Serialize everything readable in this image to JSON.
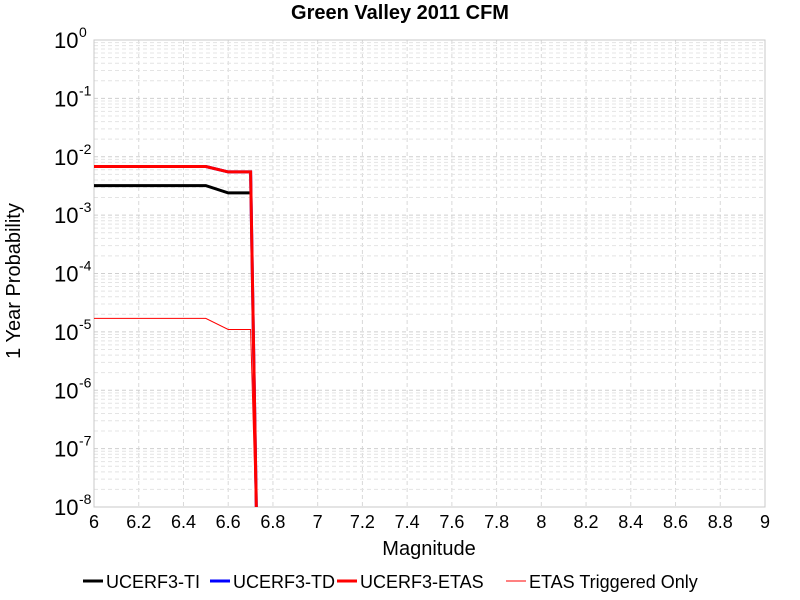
{
  "chart_data": {
    "type": "line",
    "title": "Green Valley 2011 CFM",
    "xlabel": "Magnitude",
    "ylabel": "1 Year Probability",
    "xlim": [
      6,
      9
    ],
    "ylim": [
      1e-08,
      1
    ],
    "yscale": "log",
    "grid": true,
    "legend_position": "bottom",
    "x_ticks": [
      "6",
      "6.2",
      "6.4",
      "6.6",
      "6.8",
      "7",
      "7.2",
      "7.4",
      "7.6",
      "7.8",
      "8",
      "8.2",
      "8.4",
      "8.6",
      "8.8",
      "9"
    ],
    "y_tick_exponents": [
      "0",
      "-1",
      "-2",
      "-3",
      "-4",
      "-5",
      "-6",
      "-7",
      "-8"
    ],
    "series": [
      {
        "name": "UCERF3-TI",
        "color": "#000000",
        "x": [
          6.0,
          6.5,
          6.6,
          6.7
        ],
        "y": [
          0.0032,
          0.0032,
          0.0024,
          0.0024
        ]
      },
      {
        "name": "UCERF3-TD",
        "color": "#0000ff",
        "x": [
          6.0,
          6.5,
          6.6,
          6.7,
          6.73
        ],
        "y": [
          0.0068,
          0.0068,
          0.0055,
          0.0055,
          1e-09
        ]
      },
      {
        "name": "UCERF3-ETAS",
        "color": "#ff0000",
        "x": [
          6.0,
          6.5,
          6.6,
          6.7,
          6.73
        ],
        "y": [
          0.0068,
          0.0068,
          0.0055,
          0.0055,
          1e-09
        ]
      },
      {
        "name": "ETAS Triggered Only",
        "color": "#ff0000",
        "x": [
          6.0,
          6.5,
          6.6,
          6.7,
          6.73
        ],
        "y": [
          1.7e-05,
          1.7e-05,
          1.1e-05,
          1.1e-05,
          1e-09
        ]
      }
    ]
  }
}
